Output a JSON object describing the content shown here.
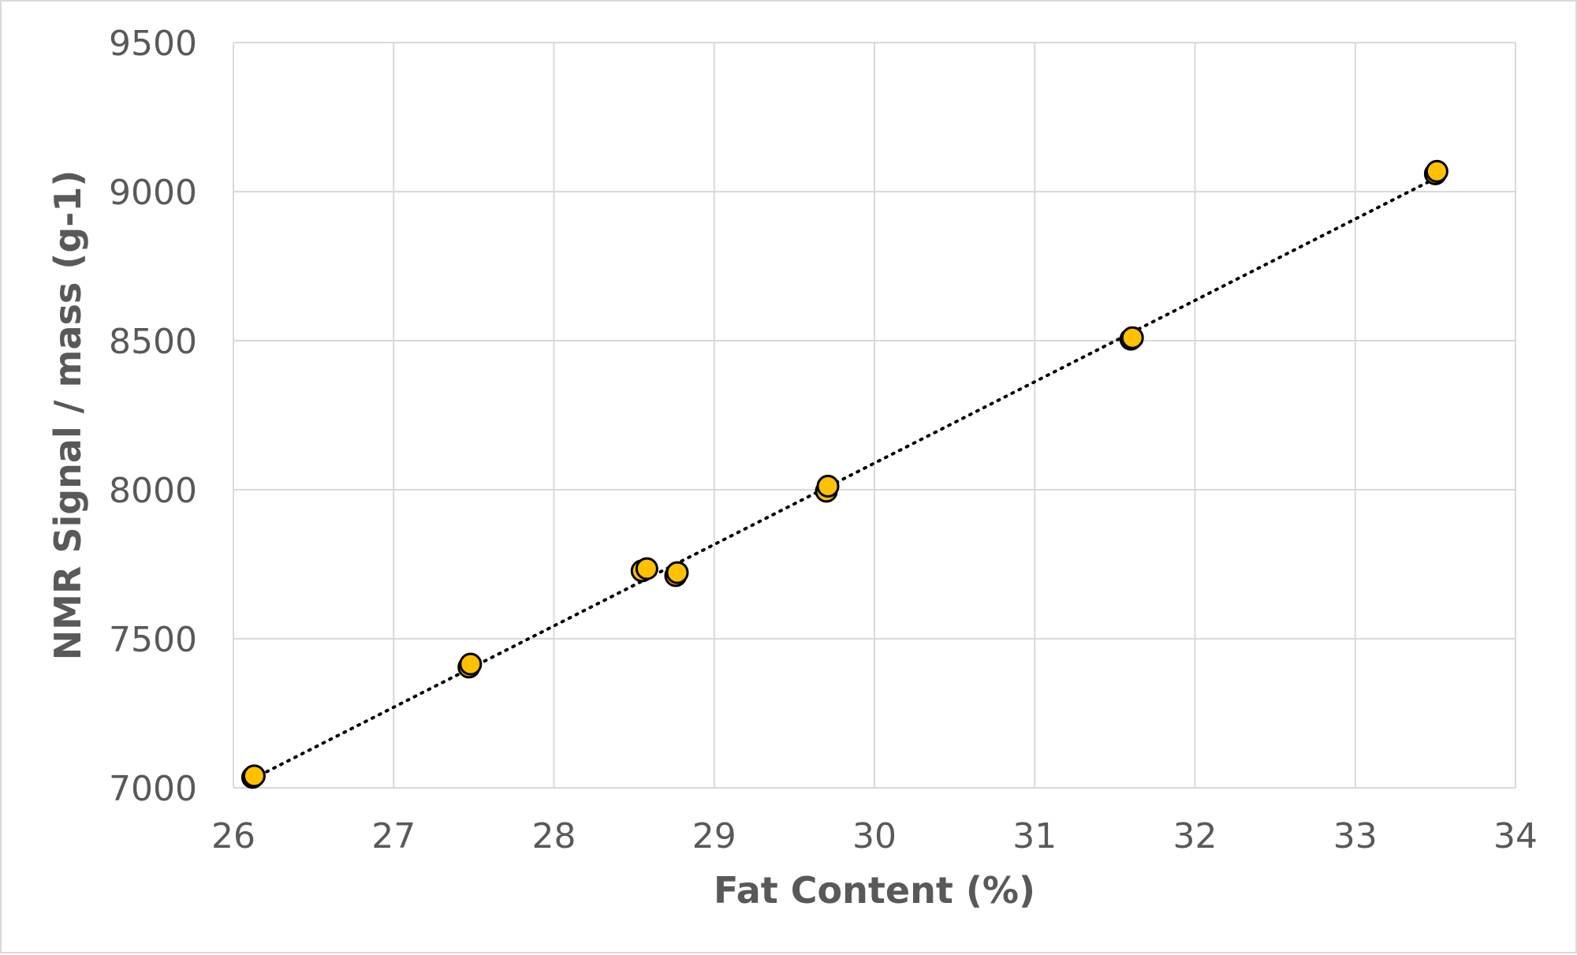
{
  "chart_data": {
    "type": "scatter",
    "title": "",
    "xlabel": "Fat Content (%)",
    "ylabel": "NMR Signal / mass (g-1)",
    "xlim": [
      26,
      34
    ],
    "ylim": [
      7000,
      9500
    ],
    "xticks": [
      "26",
      "27",
      "28",
      "29",
      "30",
      "31",
      "32",
      "33",
      "34"
    ],
    "yticks": [
      "7000",
      "7500",
      "8000",
      "8500",
      "9000",
      "9500"
    ],
    "grid": true,
    "legend": "none",
    "marker_color": "#ffc000",
    "marker_edge_color": "#000000",
    "trendline_color": "#000000",
    "series": [
      {
        "points": [
          [
            26.12,
            7035
          ],
          [
            26.13,
            7040
          ],
          [
            27.47,
            7405
          ],
          [
            27.48,
            7415
          ],
          [
            28.55,
            7728
          ],
          [
            28.58,
            7735
          ],
          [
            28.76,
            7712
          ],
          [
            28.77,
            7722
          ],
          [
            29.7,
            7995
          ],
          [
            29.71,
            8012
          ],
          [
            31.6,
            8505
          ],
          [
            31.61,
            8510
          ],
          [
            33.5,
            9060
          ],
          [
            33.51,
            9068
          ]
        ]
      }
    ],
    "trendline": {
      "type": "linear",
      "start": [
        26.12,
        7030
      ],
      "end": [
        33.52,
        9050
      ]
    }
  }
}
